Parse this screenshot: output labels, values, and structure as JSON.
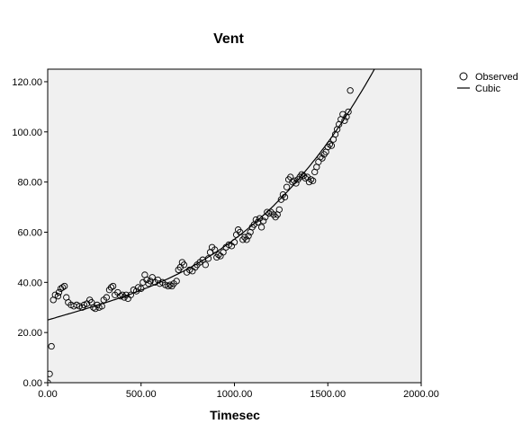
{
  "chart_data": {
    "type": "scatter",
    "title": "Vent",
    "xlabel": "Timesec",
    "ylabel": "",
    "xlim": [
      0,
      2000
    ],
    "ylim": [
      0,
      125
    ],
    "x_ticks": [
      "0.00",
      "500.00",
      "1000.00",
      "1500.00",
      "2000.00"
    ],
    "y_ticks": [
      "0.00",
      "20.00",
      "40.00",
      "60.00",
      "80.00",
      "100.00",
      "120.00"
    ],
    "grid": false,
    "legend_position": "top-right",
    "legend": [
      "Observed",
      "Cubic"
    ],
    "colors": {
      "plot_bg": "#f0f0f0",
      "marker": "#000000",
      "line": "#000000"
    },
    "series": [
      {
        "name": "Observed",
        "kind": "scatter",
        "points": [
          [
            0,
            0
          ],
          [
            10,
            3.5
          ],
          [
            20,
            14.5
          ],
          [
            30,
            33
          ],
          [
            40,
            35
          ],
          [
            55,
            34.5
          ],
          [
            60,
            36
          ],
          [
            70,
            37.5
          ],
          [
            80,
            38
          ],
          [
            90,
            38.5
          ],
          [
            100,
            34
          ],
          [
            110,
            32
          ],
          [
            125,
            31
          ],
          [
            140,
            30.5
          ],
          [
            155,
            31
          ],
          [
            170,
            30.5
          ],
          [
            185,
            30
          ],
          [
            195,
            31
          ],
          [
            210,
            31.5
          ],
          [
            225,
            33
          ],
          [
            235,
            32
          ],
          [
            245,
            30
          ],
          [
            255,
            29.5
          ],
          [
            265,
            31
          ],
          [
            275,
            30
          ],
          [
            290,
            30.5
          ],
          [
            300,
            33
          ],
          [
            315,
            34
          ],
          [
            330,
            37
          ],
          [
            340,
            38
          ],
          [
            350,
            38.5
          ],
          [
            360,
            35
          ],
          [
            375,
            36
          ],
          [
            390,
            34.5
          ],
          [
            400,
            35
          ],
          [
            410,
            34
          ],
          [
            420,
            35
          ],
          [
            430,
            33.5
          ],
          [
            445,
            35
          ],
          [
            460,
            37
          ],
          [
            475,
            36.5
          ],
          [
            485,
            38
          ],
          [
            500,
            37.5
          ],
          [
            510,
            40
          ],
          [
            520,
            43
          ],
          [
            530,
            41
          ],
          [
            540,
            39.5
          ],
          [
            550,
            40.5
          ],
          [
            560,
            42
          ],
          [
            575,
            40
          ],
          [
            590,
            41
          ],
          [
            600,
            39.5
          ],
          [
            615,
            40
          ],
          [
            630,
            39
          ],
          [
            645,
            38.5
          ],
          [
            655,
            39
          ],
          [
            665,
            38.5
          ],
          [
            675,
            39.5
          ],
          [
            690,
            40.5
          ],
          [
            700,
            45
          ],
          [
            710,
            46
          ],
          [
            720,
            48
          ],
          [
            730,
            47
          ],
          [
            745,
            44
          ],
          [
            760,
            45
          ],
          [
            775,
            44.5
          ],
          [
            790,
            46
          ],
          [
            800,
            47
          ],
          [
            815,
            48
          ],
          [
            830,
            49
          ],
          [
            845,
            47
          ],
          [
            860,
            49.5
          ],
          [
            870,
            52
          ],
          [
            880,
            54
          ],
          [
            895,
            53
          ],
          [
            905,
            50
          ],
          [
            915,
            51
          ],
          [
            925,
            50.5
          ],
          [
            940,
            52
          ],
          [
            955,
            54
          ],
          [
            970,
            55
          ],
          [
            985,
            54.5
          ],
          [
            1000,
            56
          ],
          [
            1010,
            59
          ],
          [
            1020,
            61
          ],
          [
            1030,
            60
          ],
          [
            1045,
            57
          ],
          [
            1055,
            58
          ],
          [
            1065,
            57
          ],
          [
            1075,
            58.5
          ],
          [
            1085,
            60
          ],
          [
            1095,
            62
          ],
          [
            1105,
            63
          ],
          [
            1115,
            65
          ],
          [
            1125,
            64
          ],
          [
            1135,
            65.5
          ],
          [
            1145,
            62
          ],
          [
            1155,
            64.5
          ],
          [
            1165,
            66
          ],
          [
            1175,
            68
          ],
          [
            1185,
            67.5
          ],
          [
            1195,
            68
          ],
          [
            1210,
            67
          ],
          [
            1220,
            66
          ],
          [
            1230,
            67
          ],
          [
            1240,
            69
          ],
          [
            1250,
            73
          ],
          [
            1260,
            75
          ],
          [
            1270,
            74
          ],
          [
            1280,
            78
          ],
          [
            1290,
            81
          ],
          [
            1300,
            82
          ],
          [
            1310,
            80
          ],
          [
            1320,
            80.5
          ],
          [
            1330,
            79.5
          ],
          [
            1340,
            81
          ],
          [
            1350,
            82
          ],
          [
            1360,
            83
          ],
          [
            1370,
            82.5
          ],
          [
            1380,
            81.5
          ],
          [
            1390,
            82
          ],
          [
            1400,
            80
          ],
          [
            1410,
            81
          ],
          [
            1420,
            80.5
          ],
          [
            1430,
            84
          ],
          [
            1440,
            86
          ],
          [
            1450,
            88
          ],
          [
            1460,
            90
          ],
          [
            1470,
            89.5
          ],
          [
            1480,
            91
          ],
          [
            1490,
            92
          ],
          [
            1500,
            94
          ],
          [
            1510,
            95
          ],
          [
            1520,
            94.5
          ],
          [
            1530,
            97
          ],
          [
            1540,
            99
          ],
          [
            1550,
            101
          ],
          [
            1560,
            103
          ],
          [
            1570,
            105
          ],
          [
            1580,
            107
          ],
          [
            1590,
            104.5
          ],
          [
            1600,
            106
          ],
          [
            1610,
            108
          ],
          [
            1620,
            116.5
          ]
        ]
      },
      {
        "name": "Cubic",
        "kind": "line",
        "coefficients": {
          "b0": 25.0,
          "b1": 0.022,
          "b2": -3e-06,
          "b3": 1.32e-08
        },
        "x_range": [
          0,
          1800
        ]
      }
    ]
  }
}
